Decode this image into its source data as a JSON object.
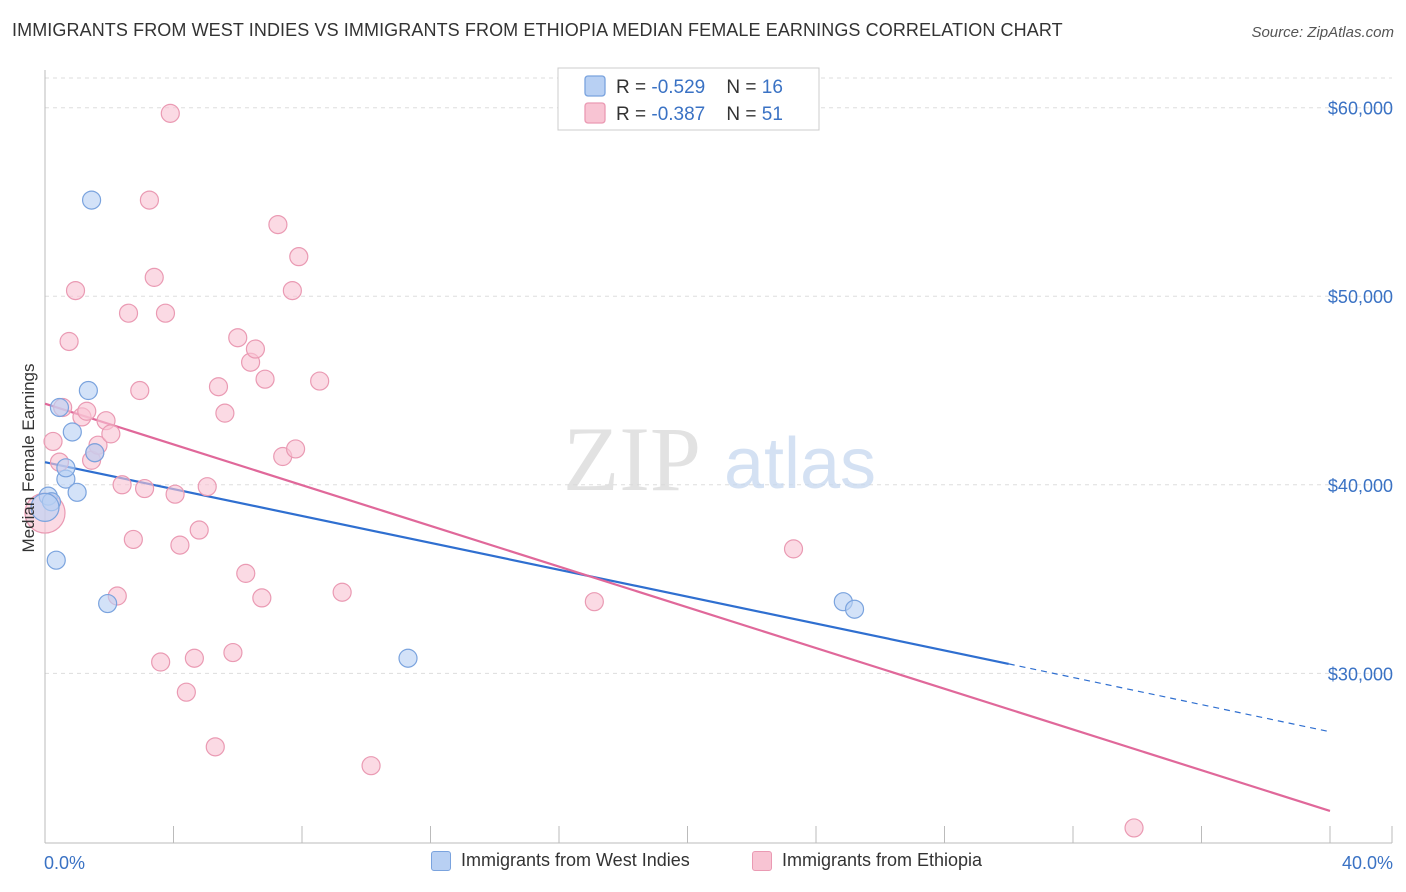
{
  "title": "IMMIGRANTS FROM WEST INDIES VS IMMIGRANTS FROM ETHIOPIA MEDIAN FEMALE EARNINGS CORRELATION CHART",
  "source": "Source: ZipAtlas.com",
  "watermark": {
    "zip": "ZIP",
    "atlas": "atlas"
  },
  "colors": {
    "blue_fill": "#b8d0f3",
    "blue_stroke": "#7aa3de",
    "blue_line": "#2f6fd0",
    "pink_fill": "#f8c4d3",
    "pink_stroke": "#ea9ab3",
    "pink_line": "#e0689a",
    "axis_label": "#3a72c4",
    "grid": "#dddddd"
  },
  "legend_top": {
    "rows": [
      {
        "r_label": "R = ",
        "r_value": "-0.529",
        "n_label": "N = ",
        "n_value": "16",
        "series": "blue"
      },
      {
        "r_label": "R = ",
        "r_value": "-0.387",
        "n_label": "N = ",
        "n_value": "51",
        "series": "pink"
      }
    ]
  },
  "legend_bottom": [
    {
      "label": "Immigrants from West Indies",
      "series": "blue"
    },
    {
      "label": "Immigrants from Ethiopia",
      "series": "pink"
    }
  ],
  "chart_data": {
    "type": "scatter",
    "title": "IMMIGRANTS FROM WEST INDIES VS IMMIGRANTS FROM ETHIOPIA MEDIAN FEMALE EARNINGS CORRELATION CHART",
    "xlabel": "",
    "ylabel": "Median Female Earnings",
    "xlim": [
      0,
      40
    ],
    "ylim": [
      21000,
      62000
    ],
    "x_tick_labels": [
      {
        "value": 0,
        "label": "0.0%"
      },
      {
        "value": 40,
        "label": "40.0%"
      }
    ],
    "x_minor_ticks": [
      0,
      4,
      8,
      12,
      16,
      20,
      24,
      28,
      32,
      36,
      40
    ],
    "y_ticks": [
      {
        "value": 30000,
        "label": "$30,000"
      },
      {
        "value": 40000,
        "label": "$40,000"
      },
      {
        "value": 50000,
        "label": "$50,000"
      },
      {
        "value": 60000,
        "label": "$60,000"
      }
    ],
    "series": [
      {
        "name": "Immigrants from West Indies",
        "color": "blue",
        "points": [
          [
            0.1,
            39400,
            0
          ],
          [
            0.2,
            39100,
            0
          ],
          [
            0.35,
            36000,
            0
          ],
          [
            0.45,
            44100,
            0
          ],
          [
            0.65,
            40300,
            0
          ],
          [
            0.65,
            40900,
            0
          ],
          [
            0.85,
            42800,
            0
          ],
          [
            1.0,
            39600,
            0
          ],
          [
            1.35,
            45000,
            0
          ],
          [
            1.45,
            55100,
            0
          ],
          [
            1.55,
            41700,
            0
          ],
          [
            1.95,
            33700,
            0
          ],
          [
            11.3,
            30800,
            0
          ],
          [
            24.85,
            33800,
            0
          ],
          [
            25.2,
            33400,
            0
          ],
          [
            0.0,
            38800,
            1
          ]
        ],
        "trend": {
          "x": [
            0,
            30
          ],
          "y": [
            41200,
            30500
          ]
        },
        "trend_dashed": {
          "x": [
            30,
            40
          ],
          "y": [
            30500,
            26900
          ]
        }
      },
      {
        "name": "Immigrants from Ethiopia",
        "color": "pink",
        "points": [
          [
            0.0,
            38500,
            2
          ],
          [
            0.25,
            42300,
            0
          ],
          [
            0.45,
            41200,
            0
          ],
          [
            0.55,
            44100,
            0
          ],
          [
            0.75,
            47600,
            0
          ],
          [
            0.95,
            50300,
            0
          ],
          [
            1.15,
            43600,
            0
          ],
          [
            1.3,
            43900,
            0
          ],
          [
            1.45,
            41300,
            0
          ],
          [
            1.65,
            42100,
            0
          ],
          [
            1.9,
            43400,
            0
          ],
          [
            2.05,
            42700,
            0
          ],
          [
            2.25,
            34100,
            0
          ],
          [
            2.4,
            40000,
            0
          ],
          [
            2.6,
            49100,
            0
          ],
          [
            2.75,
            37100,
            0
          ],
          [
            2.95,
            45000,
            0
          ],
          [
            3.1,
            39800,
            0
          ],
          [
            3.25,
            55100,
            0
          ],
          [
            3.4,
            51000,
            0
          ],
          [
            3.6,
            30600,
            0
          ],
          [
            3.75,
            49100,
            0
          ],
          [
            3.9,
            59700,
            0
          ],
          [
            4.05,
            39500,
            0
          ],
          [
            4.2,
            36800,
            0
          ],
          [
            4.4,
            29000,
            0
          ],
          [
            4.65,
            30800,
            0
          ],
          [
            4.8,
            37600,
            0
          ],
          [
            5.05,
            39900,
            0
          ],
          [
            5.3,
            26100,
            0
          ],
          [
            5.4,
            45200,
            0
          ],
          [
            5.6,
            43800,
            0
          ],
          [
            5.85,
            31100,
            0
          ],
          [
            6.0,
            47800,
            0
          ],
          [
            6.25,
            35300,
            0
          ],
          [
            6.4,
            46500,
            0
          ],
          [
            6.55,
            47200,
            0
          ],
          [
            6.75,
            34000,
            0
          ],
          [
            6.85,
            45600,
            0
          ],
          [
            7.25,
            53800,
            0
          ],
          [
            7.4,
            41500,
            0
          ],
          [
            7.7,
            50300,
            0
          ],
          [
            7.8,
            41900,
            0
          ],
          [
            7.9,
            52100,
            0
          ],
          [
            8.55,
            45500,
            0
          ],
          [
            9.25,
            34300,
            0
          ],
          [
            10.15,
            25100,
            0
          ],
          [
            17.1,
            33800,
            0
          ],
          [
            23.3,
            36600,
            0
          ],
          [
            33.9,
            21800,
            0
          ],
          [
            1.55,
            41700,
            0
          ]
        ],
        "trend": {
          "x": [
            0,
            40
          ],
          "y": [
            44300,
            22700
          ]
        }
      }
    ]
  }
}
